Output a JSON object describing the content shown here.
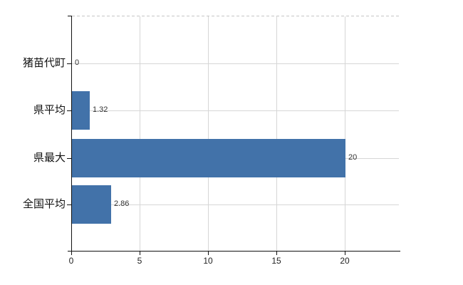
{
  "chart_data": {
    "type": "bar",
    "orientation": "horizontal",
    "title": "",
    "categories": [
      "猪苗代町",
      "県平均",
      "県最大",
      "全国平均"
    ],
    "values": [
      0,
      1.32,
      20,
      2.86
    ],
    "value_labels": [
      "0",
      "1.32",
      "20",
      "2.86"
    ],
    "x_tick_labels": [
      "0",
      "5",
      "10",
      "15",
      "20"
    ],
    "x_tick_values": [
      0,
      5,
      10,
      15,
      20
    ],
    "xlim": [
      0,
      24
    ],
    "grid": true,
    "legend_position": "none",
    "colors": {
      "bar": "#4272a9",
      "grid": "#d6d6d6",
      "axis": "#111111",
      "plot_top_border": "#c6c6c6",
      "category_label": "#111111",
      "value_label": "#333333",
      "tick_label": "#222222",
      "background": "#ffffff"
    }
  }
}
